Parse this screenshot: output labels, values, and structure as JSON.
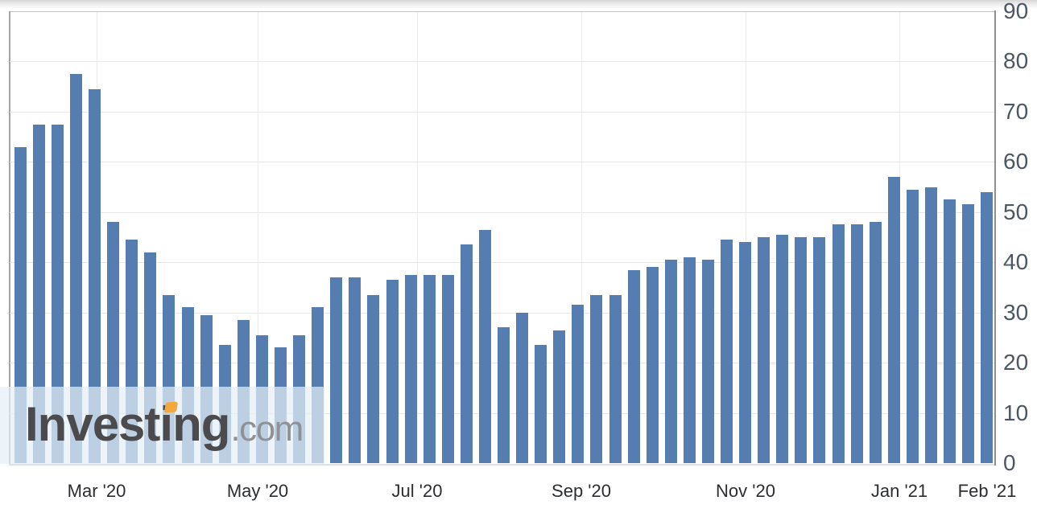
{
  "chart_data": {
    "type": "bar",
    "title": "",
    "subtitle": "",
    "legend": "none",
    "grid": "light horizontal lines every 10 units; light vertical lines at bi-monthly ticks",
    "y_axis_side": "right",
    "ylim": [
      0,
      90
    ],
    "y_ticks": [
      0,
      10,
      20,
      30,
      40,
      50,
      60,
      70,
      80,
      90
    ],
    "x_tick_labels": [
      "Mar '20",
      "May '20",
      "Jul '20",
      "Sep '20",
      "Nov '20",
      "Jan '21",
      "Feb '21"
    ],
    "values": [
      63,
      67.5,
      67.5,
      77.5,
      74.5,
      48,
      44.5,
      42,
      33.5,
      31,
      29.5,
      23.5,
      28.5,
      25.5,
      23,
      25.5,
      31,
      37,
      37,
      33.5,
      36.5,
      37.5,
      37.5,
      37.5,
      43.5,
      46.5,
      27,
      30,
      23.5,
      26.5,
      31.5,
      33.5,
      33.5,
      38.5,
      39,
      40.5,
      41,
      40.5,
      44.5,
      44,
      45,
      45.5,
      45,
      45,
      47.5,
      47.5,
      48,
      57,
      54.5,
      55,
      52.5,
      51.5,
      54
    ],
    "bar_color": "#557DAF"
  },
  "watermark": {
    "brand": "Investing",
    "suffix": ".com",
    "brand_color": "#4B4B4E",
    "suffix_color": "#8F9194",
    "dot_color": "#F2A83C",
    "band_color": "rgba(229,238,246,0.72)"
  },
  "axis_style": {
    "y_label_color": "#4D5763",
    "x_label_color": "#2B2D30"
  }
}
